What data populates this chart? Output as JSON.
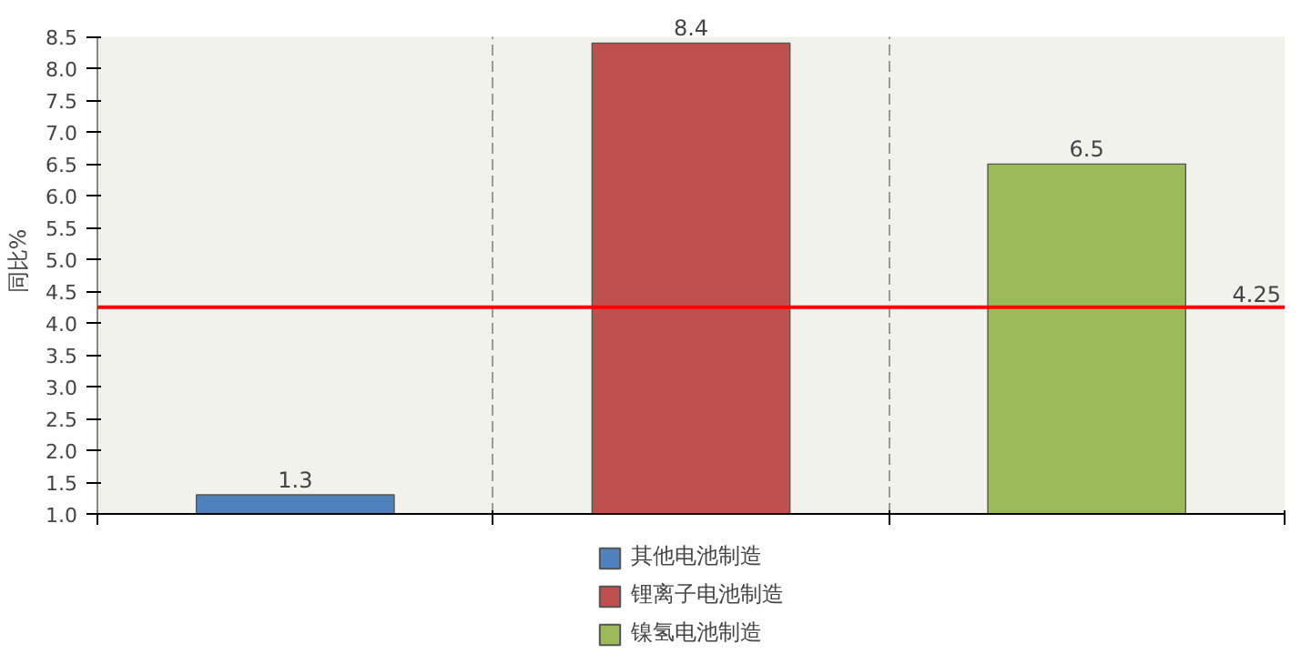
{
  "chart_data": {
    "type": "bar",
    "ylabel": "同比%",
    "categories": [
      null,
      null,
      null
    ],
    "series": [
      {
        "name": "其他电池制造",
        "color": "#4f81bd",
        "values": [
          1.3,
          null,
          null
        ]
      },
      {
        "name": "锂离子电池制造",
        "color": "#c0504d",
        "values": [
          null,
          8.4,
          null
        ]
      },
      {
        "name": "镍氢电池制造",
        "color": "#9bbb59",
        "values": [
          null,
          null,
          6.5
        ]
      }
    ],
    "ylim": [
      1.0,
      8.5
    ],
    "yticks": [
      {
        "value": 1,
        "label": "1.0"
      },
      1.5,
      {
        "value": 2,
        "label": "2.0"
      },
      2.5,
      {
        "value": 3,
        "label": "3.0"
      },
      3.5,
      {
        "value": 4,
        "label": "4.0"
      },
      4.5,
      {
        "value": 5,
        "label": "5.0"
      },
      5.5,
      {
        "value": 6,
        "label": "6.0"
      },
      6.5,
      {
        "value": 7,
        "label": "7.0"
      },
      7.5,
      {
        "value": 8,
        "label": "8.0"
      },
      8.5
    ],
    "ref_lines": [
      {
        "axis": "y",
        "value": 4.25,
        "label": "4.25",
        "color": "#ff0000"
      }
    ],
    "data_labels": true,
    "grid": "x",
    "legend": "bottom"
  }
}
